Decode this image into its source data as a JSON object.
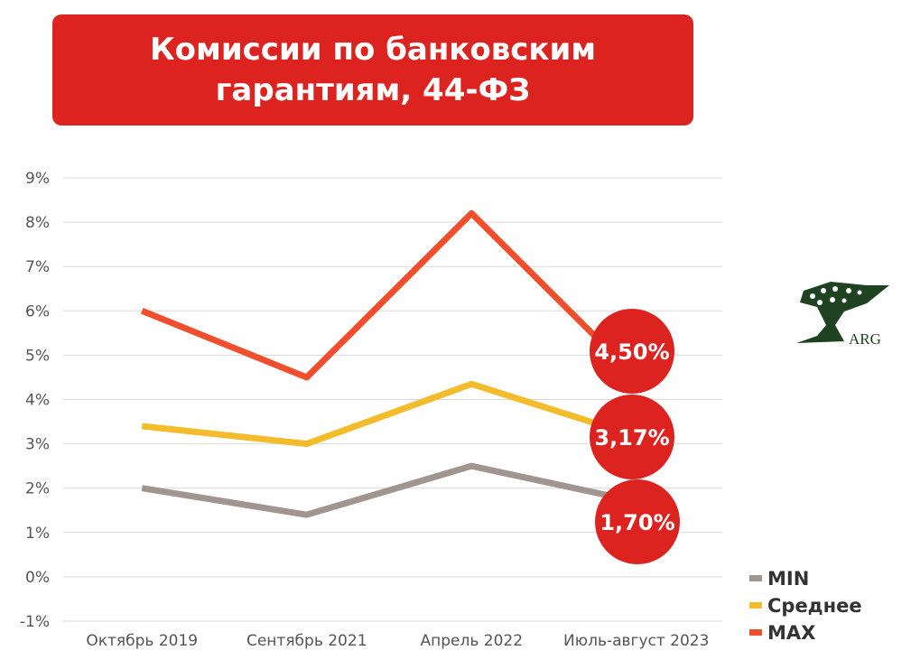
{
  "chart_data": {
    "type": "line",
    "title": "Комиссии по банковским гарантиям, 44-ФЗ",
    "categories": [
      "Октябрь 2019",
      "Сентябрь 2021",
      "Апрель 2022",
      "Июль-август 2023"
    ],
    "ylim": [
      -1,
      9
    ],
    "yticks": [
      "-1%",
      "0%",
      "1%",
      "2%",
      "3%",
      "4%",
      "5%",
      "6%",
      "7%",
      "8%",
      "9%"
    ],
    "grid": true,
    "legend_position": "bottom-right",
    "series": [
      {
        "name": "MIN",
        "color": "#a1958f",
        "values": [
          2.0,
          1.4,
          2.5,
          1.7
        ],
        "last_label": "1,70%"
      },
      {
        "name": "Среднее",
        "color": "#f4bb2a",
        "values": [
          3.4,
          3.0,
          4.35,
          3.17
        ],
        "last_label": "3,17%"
      },
      {
        "name": "MAX",
        "color": "#f04e2d",
        "values": [
          6.0,
          4.5,
          8.2,
          4.5
        ],
        "last_label": "4,50%"
      }
    ],
    "label_bubble_color": "#dc2320"
  },
  "logo": {
    "text": "ARG"
  }
}
